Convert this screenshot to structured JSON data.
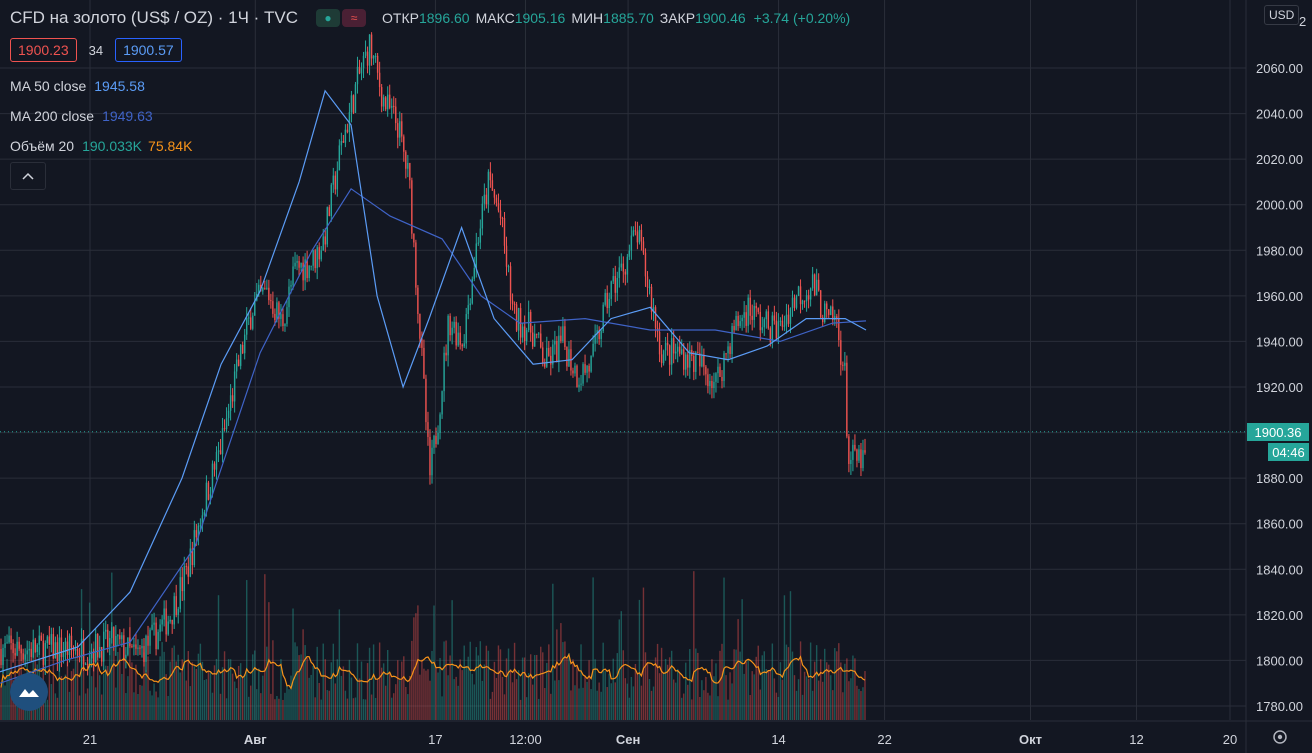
{
  "header": {
    "title": "CFD на золото (US$ / OZ) · 1Ч · TVC",
    "open_label": "ОТКР",
    "open": "1896.60",
    "high_label": "МАКС",
    "high": "1905.16",
    "low_label": "МИН",
    "low": "1885.70",
    "close_label": "ЗАКР",
    "close": "1900.46",
    "change": "+3.74 (+0.20%)",
    "bid": "1900.23",
    "spread": "34",
    "ask": "1900.57"
  },
  "legend": {
    "ma50_label": "MA 50 close",
    "ma50_value": "1945.58",
    "ma200_label": "MA 200 close",
    "ma200_value": "1949.63",
    "vol_label": "Объём 20",
    "vol_value": "190.033K",
    "vol_ma_value": "75.84K"
  },
  "price_axis": {
    "currency": "USD",
    "last_price": "1900.36",
    "countdown": "04:46",
    "top_partial": "2"
  },
  "colors": {
    "up": "#26a69a",
    "down": "#ef5350",
    "ma50": "#2962ff",
    "ma200": "#2962ff",
    "vol_ma": "#f7931a",
    "background": "#131722",
    "grid": "#2a2e39"
  },
  "icons": {
    "collapse": "chevron-up-icon",
    "settings": "gear-icon",
    "logo": "tradingview-cloud-icon"
  },
  "chart_data": {
    "type": "candlestick",
    "title": "CFD на золото (US$ / OZ) · 1Ч · TVC",
    "ylim": [
      1774,
      2080
    ],
    "y_ticks": [
      1780,
      1800,
      1820,
      1840,
      1860,
      1880,
      1900,
      1920,
      1940,
      1960,
      1980,
      2000,
      2020,
      2040,
      2060
    ],
    "x_tick_labels": [
      "21",
      "Авг",
      "17",
      "12:00",
      "Сен",
      "14",
      "22",
      "Окт",
      "12",
      "20"
    ],
    "x_tick_pos": [
      0.0,
      0.145,
      0.303,
      0.382,
      0.472,
      0.604,
      0.697,
      0.825,
      0.918,
      1.0
    ],
    "price_path": [
      [
        0.0,
        1805
      ],
      [
        0.02,
        1808
      ],
      [
        0.04,
        1802
      ],
      [
        0.055,
        1810
      ],
      [
        0.07,
        1820
      ],
      [
        0.085,
        1840
      ],
      [
        0.1,
        1870
      ],
      [
        0.115,
        1895
      ],
      [
        0.13,
        1930
      ],
      [
        0.142,
        1955
      ],
      [
        0.155,
        1962
      ],
      [
        0.168,
        1948
      ],
      [
        0.18,
        1972
      ],
      [
        0.195,
        1975
      ],
      [
        0.205,
        1985
      ],
      [
        0.22,
        2025
      ],
      [
        0.235,
        2055
      ],
      [
        0.245,
        2070
      ],
      [
        0.258,
        2045
      ],
      [
        0.27,
        2035
      ],
      [
        0.28,
        2010
      ],
      [
        0.29,
        1940
      ],
      [
        0.298,
        1880
      ],
      [
        0.305,
        1905
      ],
      [
        0.315,
        1950
      ],
      [
        0.327,
        1940
      ],
      [
        0.34,
        1985
      ],
      [
        0.35,
        2010
      ],
      [
        0.36,
        1995
      ],
      [
        0.372,
        1950
      ],
      [
        0.388,
        1945
      ],
      [
        0.4,
        1930
      ],
      [
        0.415,
        1940
      ],
      [
        0.428,
        1925
      ],
      [
        0.44,
        1930
      ],
      [
        0.455,
        1960
      ],
      [
        0.47,
        1975
      ],
      [
        0.48,
        1988
      ],
      [
        0.49,
        1965
      ],
      [
        0.502,
        1935
      ],
      [
        0.52,
        1935
      ],
      [
        0.535,
        1930
      ],
      [
        0.55,
        1922
      ],
      [
        0.565,
        1945
      ],
      [
        0.578,
        1955
      ],
      [
        0.59,
        1948
      ],
      [
        0.605,
        1945
      ],
      [
        0.62,
        1960
      ],
      [
        0.635,
        1965
      ],
      [
        0.648,
        1948
      ],
      [
        0.655,
        1950
      ],
      [
        0.663,
        1925
      ],
      [
        0.666,
        1888
      ]
    ],
    "ma50_path": [
      [
        0.0,
        1795
      ],
      [
        0.06,
        1806
      ],
      [
        0.1,
        1830
      ],
      [
        0.14,
        1880
      ],
      [
        0.17,
        1930
      ],
      [
        0.2,
        1962
      ],
      [
        0.23,
        2010
      ],
      [
        0.25,
        2050
      ],
      [
        0.27,
        2035
      ],
      [
        0.29,
        1960
      ],
      [
        0.31,
        1920
      ],
      [
        0.33,
        1950
      ],
      [
        0.355,
        1990
      ],
      [
        0.38,
        1950
      ],
      [
        0.41,
        1930
      ],
      [
        0.44,
        1932
      ],
      [
        0.47,
        1950
      ],
      [
        0.5,
        1955
      ],
      [
        0.53,
        1935
      ],
      [
        0.56,
        1932
      ],
      [
        0.59,
        1938
      ],
      [
        0.62,
        1950
      ],
      [
        0.65,
        1950
      ],
      [
        0.666,
        1945
      ]
    ],
    "ma200_path": [
      [
        0.0,
        1790
      ],
      [
        0.05,
        1800
      ],
      [
        0.1,
        1808
      ],
      [
        0.15,
        1850
      ],
      [
        0.2,
        1935
      ],
      [
        0.24,
        1980
      ],
      [
        0.27,
        2007
      ],
      [
        0.3,
        1995
      ],
      [
        0.34,
        1985
      ],
      [
        0.37,
        1960
      ],
      [
        0.4,
        1948
      ],
      [
        0.45,
        1950
      ],
      [
        0.5,
        1945
      ],
      [
        0.55,
        1945
      ],
      [
        0.6,
        1940
      ],
      [
        0.64,
        1948
      ],
      [
        0.666,
        1949
      ]
    ],
    "volume_ma_range": [
      1780,
      1805
    ],
    "last_price": 1900.36
  }
}
